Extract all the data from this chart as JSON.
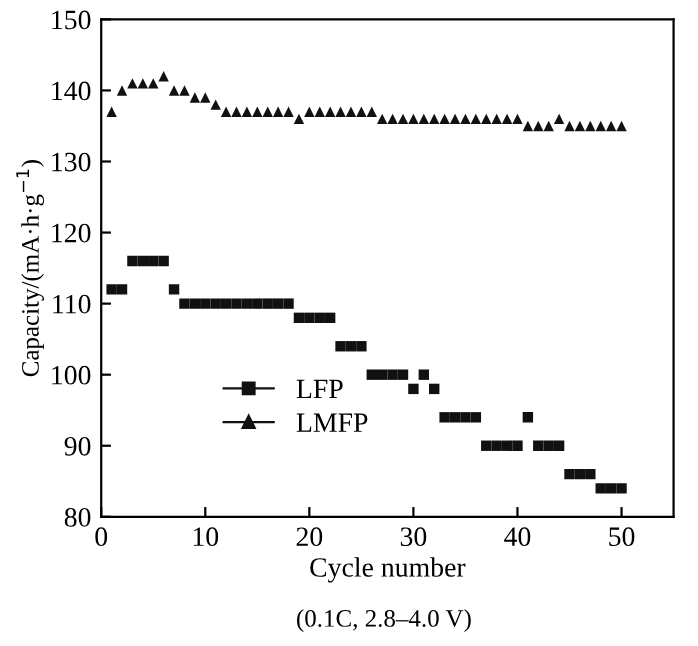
{
  "chart_data": {
    "type": "scatter",
    "xlabel": "Cycle number",
    "ylabel": "Capacity/(mA·h·g$^{−1}$)",
    "x": [
      1,
      2,
      3,
      4,
      5,
      6,
      7,
      8,
      9,
      10,
      11,
      12,
      13,
      14,
      15,
      16,
      17,
      18,
      19,
      20,
      21,
      22,
      23,
      24,
      25,
      26,
      27,
      28,
      29,
      30,
      31,
      32,
      33,
      34,
      35,
      36,
      37,
      38,
      39,
      40,
      41,
      42,
      43,
      44,
      45,
      46,
      47,
      48,
      49,
      50
    ],
    "series": [
      {
        "name": "LFP",
        "color": "#111111",
        "marker": "square",
        "values": [
          112,
          112,
          116,
          116,
          116,
          116,
          112,
          110,
          110,
          110,
          110,
          110,
          110,
          110,
          110,
          110,
          110,
          110,
          108,
          108,
          108,
          108,
          104,
          104,
          104,
          100,
          100,
          100,
          100,
          98,
          100,
          98,
          94,
          94,
          94,
          94,
          90,
          90,
          90,
          90,
          94,
          90,
          90,
          90,
          86,
          86,
          86,
          84,
          84,
          84
        ]
      },
      {
        "name": "LMFP",
        "color": "#111111",
        "marker": "triangle",
        "values": [
          137,
          140,
          141,
          141,
          141,
          142,
          140,
          140,
          139,
          139,
          138,
          137,
          137,
          137,
          137,
          137,
          137,
          137,
          136,
          137,
          137,
          137,
          137,
          137,
          137,
          137,
          136,
          136,
          136,
          136,
          136,
          136,
          136,
          136,
          136,
          136,
          136,
          136,
          136,
          136,
          135,
          135,
          135,
          136,
          135,
          135,
          135,
          135,
          135,
          135
        ]
      }
    ],
    "xlim": [
      0,
      55
    ],
    "xticks": [
      0,
      10,
      20,
      30,
      40,
      50
    ],
    "ylim": [
      80,
      150
    ],
    "yticks": [
      80,
      90,
      100,
      110,
      120,
      130,
      140,
      150
    ],
    "legend": "bottom left",
    "grid": false,
    "annotations": [
      "(0.1C, 2.8–4.0 V)"
    ]
  }
}
